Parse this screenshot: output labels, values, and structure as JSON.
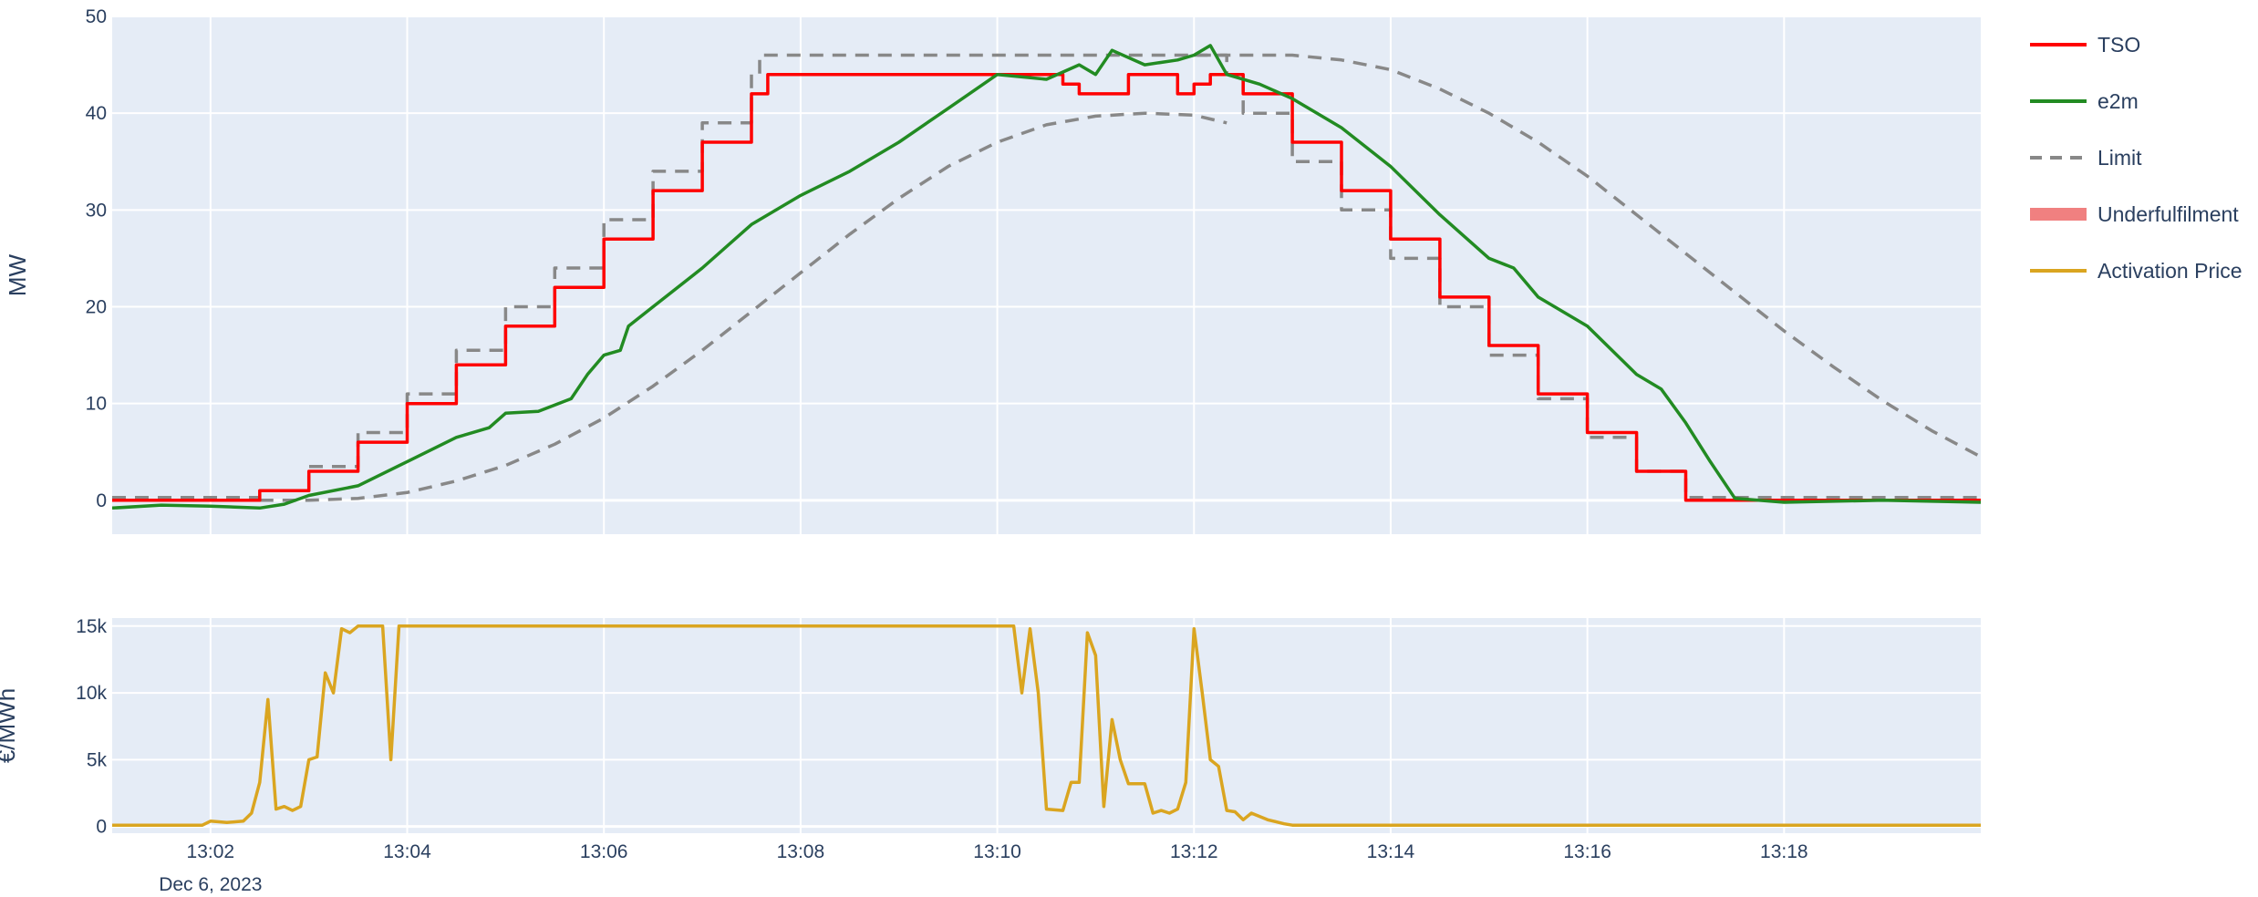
{
  "chart_data": [
    {
      "type": "line",
      "ylabel": "MW",
      "ylim": [
        -3.5,
        50
      ],
      "yticks": [
        0,
        10,
        20,
        30,
        40,
        50
      ],
      "grid": true,
      "series": [
        {
          "name": "TSO",
          "color": "#ff0000",
          "dash": "solid",
          "step": true,
          "points": [
            [
              "13:01:00",
              0
            ],
            [
              "13:02:30",
              0
            ],
            [
              "13:02:30",
              1
            ],
            [
              "13:03:00",
              3
            ],
            [
              "13:03:30",
              6
            ],
            [
              "13:04:00",
              10
            ],
            [
              "13:04:30",
              14
            ],
            [
              "13:05:00",
              18
            ],
            [
              "13:05:30",
              22
            ],
            [
              "13:06:00",
              27
            ],
            [
              "13:06:30",
              32
            ],
            [
              "13:07:00",
              37
            ],
            [
              "13:07:30",
              42
            ],
            [
              "13:07:40",
              44
            ],
            [
              "13:10:30",
              44
            ],
            [
              "13:10:40",
              43
            ],
            [
              "13:10:50",
              42
            ],
            [
              "13:11:10",
              42
            ],
            [
              "13:11:20",
              44
            ],
            [
              "13:11:40",
              44
            ],
            [
              "13:11:50",
              42
            ],
            [
              "13:12:00",
              43
            ],
            [
              "13:12:10",
              44
            ],
            [
              "13:12:20",
              44
            ],
            [
              "13:12:30",
              42
            ],
            [
              "13:13:00",
              37
            ],
            [
              "13:13:30",
              32
            ],
            [
              "13:14:00",
              27
            ],
            [
              "13:14:30",
              21
            ],
            [
              "13:15:00",
              16
            ],
            [
              "13:15:30",
              11
            ],
            [
              "13:16:00",
              7
            ],
            [
              "13:16:30",
              3
            ],
            [
              "13:17:00",
              0
            ],
            [
              "13:20:00",
              0
            ]
          ]
        },
        {
          "name": "e2m",
          "color": "#228b22",
          "dash": "solid",
          "step": false,
          "points": [
            [
              "13:01:00",
              -0.8
            ],
            [
              "13:01:30",
              -0.5
            ],
            [
              "13:02:00",
              -0.6
            ],
            [
              "13:02:30",
              -0.8
            ],
            [
              "13:02:45",
              -0.4
            ],
            [
              "13:03:00",
              0.5
            ],
            [
              "13:03:30",
              1.5
            ],
            [
              "13:04:00",
              4
            ],
            [
              "13:04:30",
              6.5
            ],
            [
              "13:04:50",
              7.5
            ],
            [
              "13:05:00",
              9
            ],
            [
              "13:05:20",
              9.2
            ],
            [
              "13:05:40",
              10.5
            ],
            [
              "13:05:50",
              13
            ],
            [
              "13:06:00",
              15
            ],
            [
              "13:06:10",
              15.5
            ],
            [
              "13:06:15",
              18
            ],
            [
              "13:06:30",
              20
            ],
            [
              "13:07:00",
              24
            ],
            [
              "13:07:30",
              28.5
            ],
            [
              "13:08:00",
              31.5
            ],
            [
              "13:08:30",
              34
            ],
            [
              "13:09:00",
              37
            ],
            [
              "13:09:30",
              40.5
            ],
            [
              "13:10:00",
              44
            ],
            [
              "13:10:30",
              43.5
            ],
            [
              "13:10:50",
              45
            ],
            [
              "13:11:00",
              44
            ],
            [
              "13:11:10",
              46.5
            ],
            [
              "13:11:30",
              45
            ],
            [
              "13:11:50",
              45.5
            ],
            [
              "13:12:00",
              46
            ],
            [
              "13:12:10",
              47
            ],
            [
              "13:12:20",
              44
            ],
            [
              "13:12:40",
              43
            ],
            [
              "13:13:00",
              41.5
            ],
            [
              "13:13:30",
              38.5
            ],
            [
              "13:14:00",
              34.5
            ],
            [
              "13:14:30",
              29.5
            ],
            [
              "13:15:00",
              25
            ],
            [
              "13:15:15",
              24
            ],
            [
              "13:15:30",
              21
            ],
            [
              "13:16:00",
              18
            ],
            [
              "13:16:30",
              13
            ],
            [
              "13:16:45",
              11.5
            ],
            [
              "13:17:00",
              8
            ],
            [
              "13:17:15",
              4
            ],
            [
              "13:17:30",
              0.2
            ],
            [
              "13:18:00",
              -0.2
            ],
            [
              "13:19:00",
              0
            ],
            [
              "13:20:00",
              -0.2
            ]
          ]
        },
        {
          "name": "Limit",
          "color": "#888888",
          "dash": "dash",
          "step": true,
          "points": [
            [
              "13:01:00",
              0.3
            ],
            [
              "13:02:30",
              0.3
            ],
            [
              "13:02:30",
              1
            ],
            [
              "13:03:00",
              3.5
            ],
            [
              "13:03:30",
              7
            ],
            [
              "13:04:00",
              11
            ],
            [
              "13:04:30",
              15.5
            ],
            [
              "13:05:00",
              20
            ],
            [
              "13:05:30",
              24
            ],
            [
              "13:06:00",
              29
            ],
            [
              "13:06:30",
              34
            ],
            [
              "13:07:00",
              39
            ],
            [
              "13:07:30",
              44
            ],
            [
              "13:07:35",
              46
            ],
            [
              "13:12:10",
              46
            ],
            [
              "13:12:20",
              44
            ],
            [
              "13:12:30",
              40
            ],
            [
              "13:13:00",
              35
            ],
            [
              "13:13:30",
              30
            ],
            [
              "13:14:00",
              25
            ],
            [
              "13:14:30",
              20
            ],
            [
              "13:15:00",
              15
            ],
            [
              "13:15:30",
              10.5
            ],
            [
              "13:16:00",
              6.5
            ],
            [
              "13:16:30",
              3
            ],
            [
              "13:17:00",
              0.3
            ],
            [
              "13:20:00",
              0.3
            ]
          ]
        },
        {
          "name": "Limit",
          "color": "#888888",
          "dash": "dash",
          "step": false,
          "points": [
            [
              "13:02:30",
              0
            ],
            [
              "13:03:00",
              0
            ],
            [
              "13:03:30",
              0.2
            ],
            [
              "13:04:00",
              0.8
            ],
            [
              "13:04:30",
              2
            ],
            [
              "13:05:00",
              3.6
            ],
            [
              "13:05:30",
              5.8
            ],
            [
              "13:06:00",
              8.5
            ],
            [
              "13:06:30",
              11.8
            ],
            [
              "13:07:00",
              15.5
            ],
            [
              "13:07:30",
              19.5
            ],
            [
              "13:08:00",
              23.5
            ],
            [
              "13:08:30",
              27.5
            ],
            [
              "13:09:00",
              31.2
            ],
            [
              "13:09:30",
              34.5
            ],
            [
              "13:10:00",
              37
            ],
            [
              "13:10:30",
              38.8
            ],
            [
              "13:11:00",
              39.7
            ],
            [
              "13:11:30",
              40
            ],
            [
              "13:12:00",
              39.8
            ],
            [
              "13:12:20",
              39
            ]
          ]
        },
        {
          "name": "Limit",
          "color": "#888888",
          "dash": "dash",
          "step": false,
          "points": [
            [
              "13:12:00",
              46
            ],
            [
              "13:13:00",
              46
            ],
            [
              "13:13:30",
              45.5
            ],
            [
              "13:14:00",
              44.5
            ],
            [
              "13:14:30",
              42.5
            ],
            [
              "13:15:00",
              40
            ],
            [
              "13:15:30",
              37
            ],
            [
              "13:16:00",
              33.5
            ],
            [
              "13:16:30",
              29.5
            ],
            [
              "13:17:00",
              25.5
            ],
            [
              "13:17:30",
              21.5
            ],
            [
              "13:18:00",
              17.5
            ],
            [
              "13:18:30",
              13.8
            ],
            [
              "13:19:00",
              10.3
            ],
            [
              "13:19:30",
              7.2
            ],
            [
              "13:20:00",
              4.5
            ]
          ]
        }
      ]
    },
    {
      "type": "line",
      "ylabel": "€/MWh",
      "ylim": [
        -500,
        15600
      ],
      "yticks": [
        0,
        5000,
        10000,
        15000
      ],
      "ytick_labels": [
        "0",
        "5k",
        "10k",
        "15k"
      ],
      "grid": true,
      "series": [
        {
          "name": "Activation Price",
          "color": "#daa520",
          "dash": "solid",
          "step": false,
          "points": [
            [
              "13:01:00",
              100
            ],
            [
              "13:01:55",
              100
            ],
            [
              "13:02:00",
              400
            ],
            [
              "13:02:10",
              300
            ],
            [
              "13:02:20",
              400
            ],
            [
              "13:02:25",
              1000
            ],
            [
              "13:02:30",
              3300
            ],
            [
              "13:02:35",
              9500
            ],
            [
              "13:02:40",
              1300
            ],
            [
              "13:02:45",
              1500
            ],
            [
              "13:02:50",
              1200
            ],
            [
              "13:02:55",
              1500
            ],
            [
              "13:03:00",
              5000
            ],
            [
              "13:03:05",
              5200
            ],
            [
              "13:03:10",
              11500
            ],
            [
              "13:03:15",
              10000
            ],
            [
              "13:03:20",
              14800
            ],
            [
              "13:03:25",
              14500
            ],
            [
              "13:03:30",
              15000
            ],
            [
              "13:03:45",
              15000
            ],
            [
              "13:03:50",
              5000
            ],
            [
              "13:03:55",
              15000
            ],
            [
              "13:10:10",
              15000
            ],
            [
              "13:10:15",
              10000
            ],
            [
              "13:10:20",
              14800
            ],
            [
              "13:10:25",
              10000
            ],
            [
              "13:10:30",
              1300
            ],
            [
              "13:10:40",
              1200
            ],
            [
              "13:10:45",
              3300
            ],
            [
              "13:10:50",
              3300
            ],
            [
              "13:10:55",
              14500
            ],
            [
              "13:11:00",
              12800
            ],
            [
              "13:11:05",
              1500
            ],
            [
              "13:11:10",
              8000
            ],
            [
              "13:11:15",
              5000
            ],
            [
              "13:11:20",
              3200
            ],
            [
              "13:11:30",
              3200
            ],
            [
              "13:11:35",
              1000
            ],
            [
              "13:11:40",
              1200
            ],
            [
              "13:11:45",
              1000
            ],
            [
              "13:11:50",
              1300
            ],
            [
              "13:11:55",
              3300
            ],
            [
              "13:12:00",
              14800
            ],
            [
              "13:12:05",
              10000
            ],
            [
              "13:12:10",
              5000
            ],
            [
              "13:12:15",
              4500
            ],
            [
              "13:12:20",
              1200
            ],
            [
              "13:12:25",
              1100
            ],
            [
              "13:12:30",
              500
            ],
            [
              "13:12:35",
              1000
            ],
            [
              "13:12:45",
              500
            ],
            [
              "13:12:55",
              200
            ],
            [
              "13:13:00",
              100
            ],
            [
              "13:20:00",
              100
            ]
          ]
        }
      ]
    }
  ],
  "x_axis": {
    "range": [
      "13:01:00",
      "13:20:00"
    ],
    "ticks": [
      "13:02",
      "13:04",
      "13:06",
      "13:08",
      "13:10",
      "13:12",
      "13:14",
      "13:16",
      "13:18"
    ],
    "date_label": "Dec 6, 2023"
  },
  "legend": {
    "placement": "top-right",
    "items": [
      {
        "label": "TSO",
        "color": "#ff0000",
        "style": "solid"
      },
      {
        "label": "e2m",
        "color": "#228b22",
        "style": "solid"
      },
      {
        "label": "Limit",
        "color": "#888888",
        "style": "dash"
      },
      {
        "label": "Underfulfilment",
        "color": "#f08080",
        "style": "band"
      },
      {
        "label": "Activation Price",
        "color": "#daa520",
        "style": "solid"
      }
    ]
  }
}
